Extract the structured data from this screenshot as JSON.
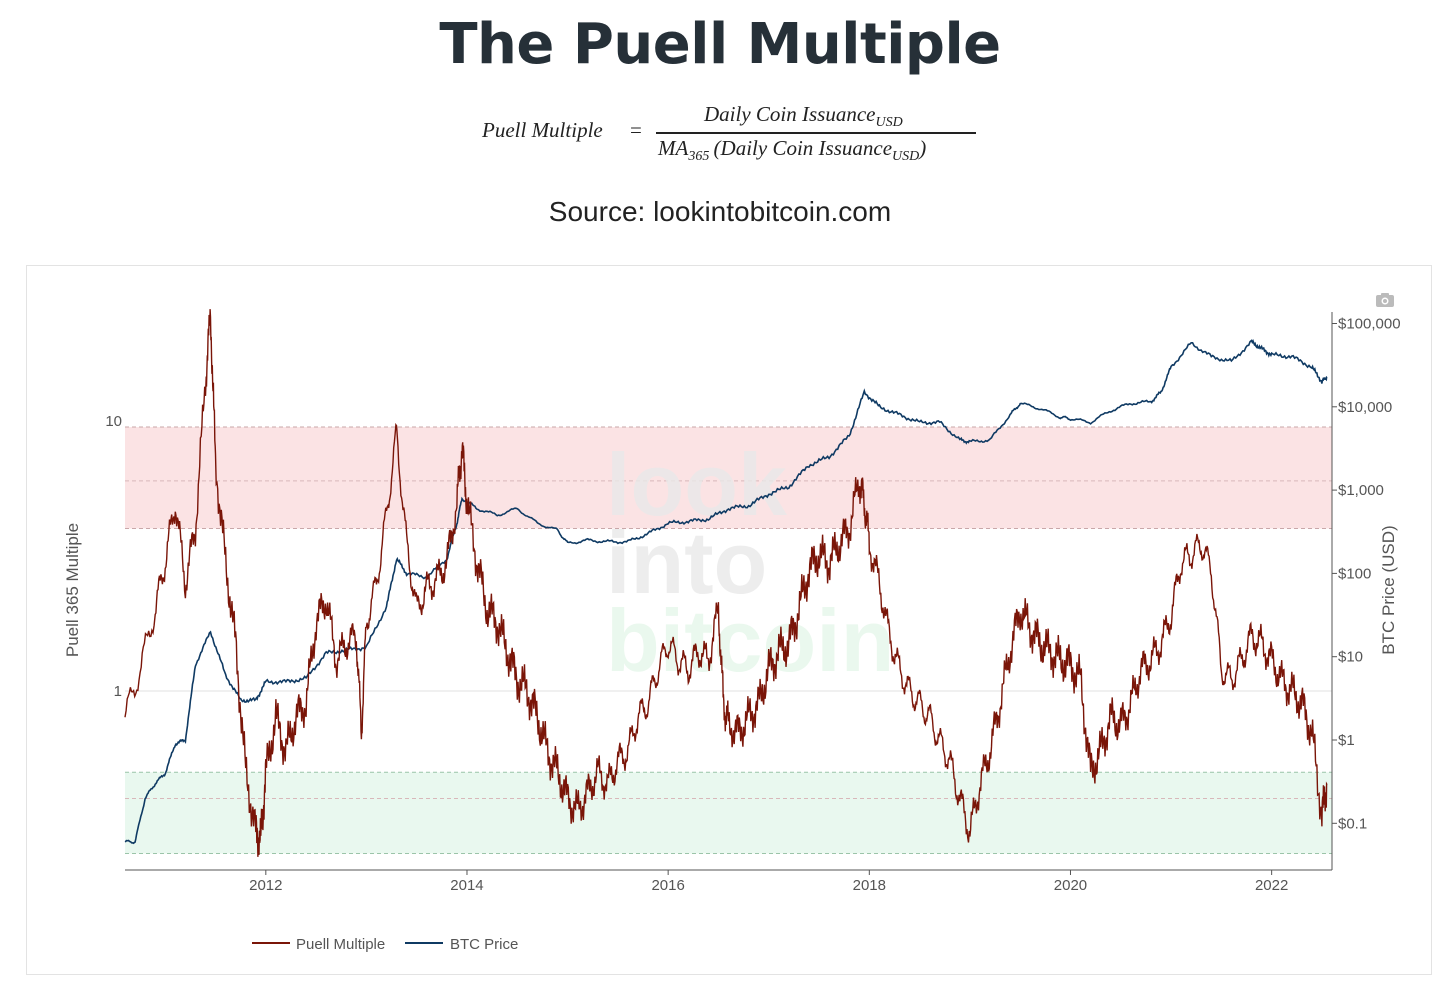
{
  "page": {
    "title": "The Puell Multiple",
    "formula": {
      "lhs": "Puell Multiple",
      "equals": "=",
      "numerator_main": "Daily Coin Issuance",
      "numerator_sub": "USD",
      "denominator_ma": "MA",
      "denominator_ma_sub": "365",
      "denominator_main": "(Daily Coin Issuance",
      "denominator_sub": "USD",
      "denominator_close": ")"
    },
    "source": "Source: lookintobitcoin.com"
  },
  "toolbar": {
    "camera_icon": "camera-icon"
  },
  "watermark": {
    "line1": "look",
    "line2": "into",
    "line3": "bitcoin"
  },
  "colors": {
    "puell": "#7a1508",
    "btc": "#0f3a63",
    "red_band": "#fbe3e4",
    "green_band": "#e9f8ef"
  },
  "chart_data": {
    "type": "line",
    "ylabel": "Puell 365 Multiple",
    "y2label": "BTC Price (USD)",
    "y_scale": "log",
    "y2_scale": "log",
    "x_ticks": [
      "2012",
      "2014",
      "2016",
      "2018",
      "2020",
      "2022"
    ],
    "y_ticks": [
      "10",
      "1"
    ],
    "y2_ticks": [
      "$100,000",
      "$10,000",
      "$1,000",
      "$100",
      "$10",
      "$1",
      "$0.1"
    ],
    "xlim": [
      "2010-08",
      "2022-08"
    ],
    "ylim": [
      0.14,
      28
    ],
    "y2lim": [
      0.05,
      150000
    ],
    "bands": [
      {
        "zone": "red",
        "from": 4,
        "to": 9.5
      },
      {
        "zone": "green",
        "from": 0.25,
        "to": 0.5
      }
    ],
    "reference_lines": [
      6.0,
      1.0,
      0.4
    ],
    "legend": {
      "placement": "bottom-left"
    },
    "series": [
      {
        "name": "Puell Multiple",
        "x": [
          2010.6,
          2010.75,
          2010.9,
          2011.0,
          2011.1,
          2011.2,
          2011.3,
          2011.4,
          2011.45,
          2011.5,
          2011.6,
          2011.7,
          2011.8,
          2011.9,
          2011.95,
          2012.0,
          2012.1,
          2012.2,
          2012.3,
          2012.4,
          2012.5,
          2012.6,
          2012.7,
          2012.8,
          2012.9,
          2012.95,
          2013.0,
          2013.1,
          2013.2,
          2013.3,
          2013.4,
          2013.5,
          2013.6,
          2013.7,
          2013.8,
          2013.9,
          2013.95,
          2014.0,
          2014.1,
          2014.2,
          2014.3,
          2014.4,
          2014.5,
          2014.6,
          2014.7,
          2014.8,
          2014.9,
          2015.0,
          2015.1,
          2015.2,
          2015.3,
          2015.4,
          2015.5,
          2015.6,
          2015.7,
          2015.8,
          2015.9,
          2016.0,
          2016.1,
          2016.2,
          2016.3,
          2016.4,
          2016.5,
          2016.55,
          2016.6,
          2016.7,
          2016.8,
          2016.9,
          2017.0,
          2017.1,
          2017.2,
          2017.3,
          2017.4,
          2017.5,
          2017.6,
          2017.7,
          2017.8,
          2017.9,
          2017.95,
          2018.0,
          2018.1,
          2018.2,
          2018.3,
          2018.4,
          2018.5,
          2018.6,
          2018.7,
          2018.8,
          2018.9,
          2019.0,
          2019.1,
          2019.2,
          2019.3,
          2019.4,
          2019.5,
          2019.6,
          2019.7,
          2019.8,
          2019.9,
          2020.0,
          2020.1,
          2020.2,
          2020.3,
          2020.4,
          2020.5,
          2020.6,
          2020.7,
          2020.8,
          2020.9,
          2021.0,
          2021.1,
          2021.2,
          2021.3,
          2021.4,
          2021.5,
          2021.6,
          2021.7,
          2021.8,
          2021.9,
          2022.0,
          2022.1,
          2022.2,
          2022.3,
          2022.4,
          2022.5,
          2022.55
        ],
        "values": [
          0.8,
          1.2,
          2.0,
          3.0,
          5.0,
          2.5,
          4.0,
          14.0,
          25.0,
          7.0,
          3.0,
          1.5,
          0.5,
          0.3,
          0.28,
          0.5,
          0.8,
          0.6,
          0.8,
          0.9,
          1.8,
          2.2,
          1.3,
          1.5,
          1.6,
          0.7,
          1.8,
          2.5,
          4.5,
          9.0,
          3.5,
          2.0,
          2.4,
          2.6,
          3.0,
          5.0,
          8.0,
          5.0,
          3.0,
          2.0,
          1.8,
          1.4,
          1.1,
          1.0,
          0.8,
          0.6,
          0.5,
          0.4,
          0.36,
          0.42,
          0.5,
          0.45,
          0.55,
          0.6,
          0.8,
          0.9,
          1.2,
          1.5,
          1.3,
          1.2,
          1.4,
          1.3,
          2.0,
          0.9,
          0.75,
          0.7,
          0.8,
          0.9,
          1.2,
          1.4,
          1.5,
          2.0,
          2.8,
          3.2,
          3.0,
          3.5,
          4.0,
          6.0,
          5.0,
          3.5,
          2.5,
          1.6,
          1.2,
          1.0,
          0.9,
          0.8,
          0.65,
          0.55,
          0.4,
          0.3,
          0.45,
          0.6,
          0.9,
          1.4,
          2.0,
          1.7,
          1.5,
          1.4,
          1.3,
          1.25,
          1.1,
          0.5,
          0.6,
          0.8,
          0.75,
          0.9,
          1.2,
          1.3,
          1.5,
          1.9,
          3.0,
          3.2,
          3.5,
          2.8,
          1.2,
          1.1,
          1.3,
          1.6,
          1.5,
          1.3,
          1.1,
          1.0,
          0.9,
          0.7,
          0.35,
          0.45
        ]
      },
      {
        "name": "BTC Price",
        "x": [
          2010.6,
          2010.7,
          2010.8,
          2010.9,
          2011.0,
          2011.1,
          2011.2,
          2011.3,
          2011.45,
          2011.6,
          2011.75,
          2011.9,
          2012.0,
          2012.2,
          2012.4,
          2012.6,
          2012.8,
          2013.0,
          2013.2,
          2013.3,
          2013.4,
          2013.6,
          2013.8,
          2013.9,
          2013.95,
          2014.1,
          2014.3,
          2014.5,
          2014.7,
          2014.9,
          2015.0,
          2015.2,
          2015.4,
          2015.6,
          2015.8,
          2016.0,
          2016.2,
          2016.4,
          2016.6,
          2016.8,
          2017.0,
          2017.2,
          2017.4,
          2017.6,
          2017.8,
          2017.95,
          2018.1,
          2018.3,
          2018.5,
          2018.7,
          2018.9,
          2019.0,
          2019.2,
          2019.4,
          2019.5,
          2019.7,
          2019.9,
          2020.0,
          2020.2,
          2020.4,
          2020.6,
          2020.8,
          2020.9,
          2021.0,
          2021.2,
          2021.4,
          2021.6,
          2021.8,
          2021.9,
          2022.0,
          2022.2,
          2022.4,
          2022.5,
          2022.55
        ],
        "values": [
          0.06,
          0.06,
          0.2,
          0.3,
          0.4,
          0.9,
          1.0,
          8.0,
          20.0,
          6.0,
          3.0,
          3.0,
          5.0,
          5.0,
          5.5,
          11.0,
          12.0,
          13.0,
          40.0,
          150.0,
          100.0,
          90.0,
          150.0,
          400.0,
          800.0,
          600.0,
          500.0,
          600.0,
          400.0,
          330.0,
          230.0,
          250.0,
          240.0,
          240.0,
          300.0,
          400.0,
          420.0,
          450.0,
          600.0,
          650.0,
          900.0,
          1100.0,
          2000.0,
          2500.0,
          4500.0,
          15000.0,
          10000.0,
          8000.0,
          6500.0,
          6500.0,
          4000.0,
          3800.0,
          4000.0,
          8000.0,
          11000.0,
          9500.0,
          7500.0,
          7200.0,
          6500.0,
          9000.0,
          11000.0,
          11500.0,
          15000.0,
          30000.0,
          58000.0,
          40000.0,
          35000.0,
          60000.0,
          50000.0,
          42000.0,
          40000.0,
          30000.0,
          20000.0,
          23000.0
        ]
      }
    ]
  }
}
